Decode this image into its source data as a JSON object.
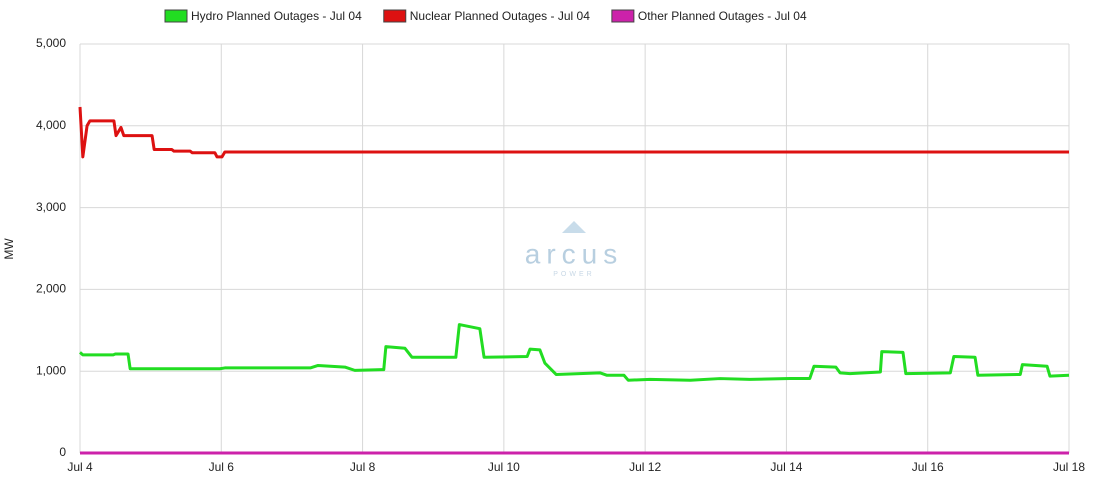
{
  "chart_data": {
    "type": "line",
    "y_label": "MW",
    "watermark": {
      "name": "arcus",
      "tagline": "POWER"
    },
    "xlim": [
      4,
      18
    ],
    "xticks": [
      {
        "value": 4,
        "label": "Jul 4"
      },
      {
        "value": 6,
        "label": "Jul 6"
      },
      {
        "value": 8,
        "label": "Jul 8"
      },
      {
        "value": 10,
        "label": "Jul 10"
      },
      {
        "value": 12,
        "label": "Jul 12"
      },
      {
        "value": 14,
        "label": "Jul 14"
      },
      {
        "value": 16,
        "label": "Jul 16"
      },
      {
        "value": 18,
        "label": "Jul 18"
      }
    ],
    "ylim": [
      0,
      5000
    ],
    "yticks": [
      0,
      {
        "value": 1000,
        "label": "1,000"
      },
      {
        "value": 2000,
        "label": "2,000"
      },
      {
        "value": 3000,
        "label": "3,000"
      },
      {
        "value": 4000,
        "label": "4,000"
      },
      {
        "value": 5000,
        "label": "5,000"
      }
    ],
    "grid": true,
    "legend": "top",
    "series": [
      {
        "name": "Hydro Planned Outages - Jul 04",
        "color": "#22dd22",
        "x": [
          4,
          4.04,
          4.47,
          4.5,
          4.68,
          4.71,
          5.98,
          6.05,
          7.26,
          7.37,
          7.75,
          7.89,
          8.3,
          8.33,
          8.6,
          8.7,
          9.32,
          9.37,
          9.66,
          9.72,
          10.33,
          10.37,
          10.51,
          10.58,
          10.74,
          11.36,
          11.46,
          11.7,
          11.76,
          12.07,
          12.64,
          13.06,
          13.48,
          14.05,
          14.33,
          14.39,
          14.7,
          14.76,
          14.9,
          15.33,
          15.35,
          15.65,
          15.69,
          16.32,
          16.37,
          16.67,
          16.71,
          17.31,
          17.34,
          17.69,
          17.73,
          18
        ],
        "values": [
          1230,
          1200,
          1200,
          1210,
          1210,
          1030,
          1030,
          1040,
          1040,
          1070,
          1050,
          1010,
          1020,
          1300,
          1280,
          1170,
          1170,
          1570,
          1520,
          1170,
          1180,
          1270,
          1260,
          1100,
          960,
          980,
          950,
          950,
          890,
          900,
          890,
          910,
          900,
          910,
          910,
          1060,
          1050,
          980,
          970,
          990,
          1240,
          1230,
          970,
          980,
          1180,
          1170,
          950,
          960,
          1080,
          1060,
          940,
          950
        ]
      },
      {
        "name": "Nuclear Planned Outages - Jul 04",
        "color": "#dd1111",
        "x": [
          4,
          4.04,
          4.1,
          4.14,
          4.48,
          4.51,
          4.58,
          4.62,
          5.02,
          5.05,
          5.3,
          5.33,
          5.56,
          5.59,
          5.91,
          5.94,
          6.01,
          6.05,
          18
        ],
        "values": [
          4230,
          3620,
          4000,
          4060,
          4060,
          3880,
          3980,
          3880,
          3880,
          3710,
          3710,
          3690,
          3690,
          3670,
          3670,
          3620,
          3620,
          3680,
          3680
        ]
      },
      {
        "name": "Other Planned Outages - Jul 04",
        "color": "#cc22aa",
        "x": [
          4,
          18
        ],
        "values": [
          0,
          0
        ]
      }
    ]
  }
}
